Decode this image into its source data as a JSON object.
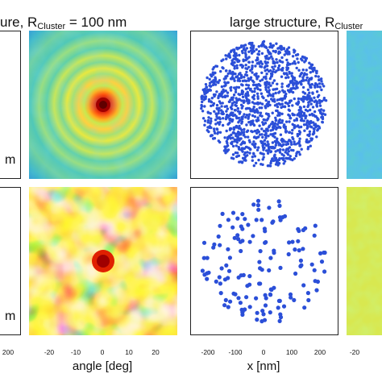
{
  "titles": {
    "left_suffix": "ure,",
    "left_r": "R",
    "left_r_sub": "Cluster",
    "left_eq": "= 100 nm",
    "right_prefix": "large  structure,",
    "right_r": "R",
    "right_r_sub": "Cluster"
  },
  "left_edge": {
    "row1_label": "m",
    "row2_label": "m",
    "tick": "200"
  },
  "angle_axis": {
    "label": "angle [deg]",
    "ticks": [
      "-20",
      "-10",
      "0",
      "10",
      "20"
    ]
  },
  "x_axis": {
    "label": "x [nm]",
    "ticks": [
      "-200",
      "-100",
      "0",
      "100",
      "200"
    ]
  },
  "right_edge": {
    "tick": "-20"
  },
  "colors": {
    "scatter_dots": "#2b4fd8",
    "map_low": "#2050d0",
    "map_mid": "#40c8b0",
    "map_high": "#ffe040",
    "map_peak": "#c00000"
  }
}
